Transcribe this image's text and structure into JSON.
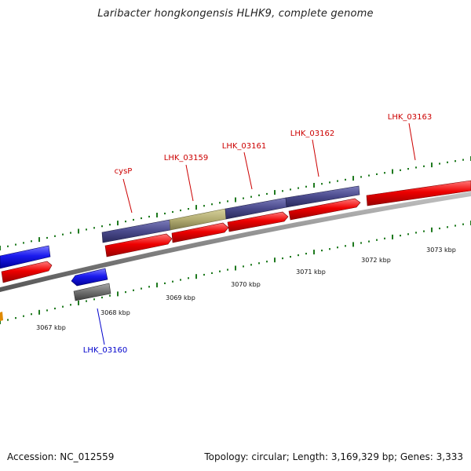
{
  "title": "Laribacter hongkongensis HLHK9, complete genome",
  "footer": {
    "accession": "Accession: NC_012559",
    "stats": "Topology: circular; Length: 3,169,329 bp; Genes: 3,333"
  },
  "scale": {
    "tick_labels": [
      "3067 kbp",
      "3068 kbp",
      "3069 kbp",
      "3070 kbp",
      "3071 kbp",
      "3072 kbp",
      "3073 kbp"
    ]
  },
  "gene_labels": {
    "cysP": "cysP",
    "lhk_03159": "LHK_03159",
    "lhk_03161": "LHK_03161",
    "lhk_03162": "LHK_03162",
    "lhk_03163": "LHK_03163",
    "lhk_03160": "LHK_03160"
  },
  "colors": {
    "forward_label": "#cc0000",
    "reverse_label": "#0000cc",
    "cds_red": "#ee0000",
    "cds_blue": "#1a1aee",
    "cds_gray": "#707070",
    "feature_purple": "#4a4a8c",
    "feature_olive": "#b3ad72",
    "backbone": "#8a8a8a",
    "tick_green": "#1f7a1f"
  }
}
